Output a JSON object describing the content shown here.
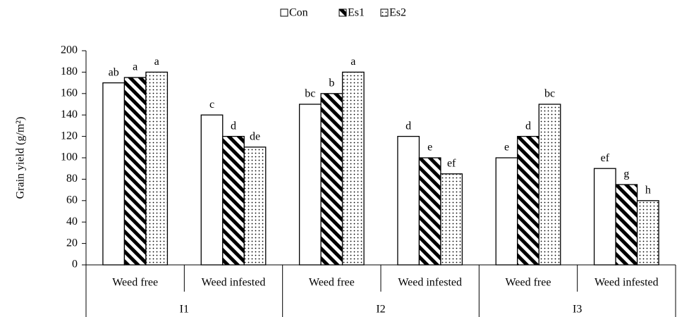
{
  "chart_data": {
    "type": "bar",
    "y_label": "Grain yield (g/m²)",
    "categories": [
      "Weed free",
      "Weed infested",
      "Weed free",
      "Weed infested",
      "Weed free",
      "Weed infested"
    ],
    "groups": [
      "I1",
      "I2",
      "I3"
    ],
    "series": [
      {
        "name": "Con",
        "color": "#ffffff",
        "pattern": "none",
        "values": [
          170,
          140,
          150,
          120,
          100,
          90
        ],
        "letters": [
          "ab",
          "c",
          "bc",
          "d",
          "e",
          "ef"
        ]
      },
      {
        "name": "Es1",
        "color": "#000000",
        "pattern": "hatch",
        "values": [
          175,
          120,
          160,
          100,
          120,
          75
        ],
        "letters": [
          "a",
          "d",
          "b",
          "e",
          "d",
          "g"
        ]
      },
      {
        "name": "Es2",
        "color": "#000000",
        "pattern": "dots",
        "values": [
          180,
          110,
          180,
          85,
          150,
          60
        ],
        "letters": [
          "a",
          "de",
          "a",
          "ef",
          "bc",
          "h"
        ]
      }
    ],
    "ylim": [
      0,
      200
    ],
    "yticks": [
      0,
      20,
      40,
      60,
      80,
      100,
      120,
      140,
      160,
      180,
      200
    ],
    "legend": "top"
  }
}
